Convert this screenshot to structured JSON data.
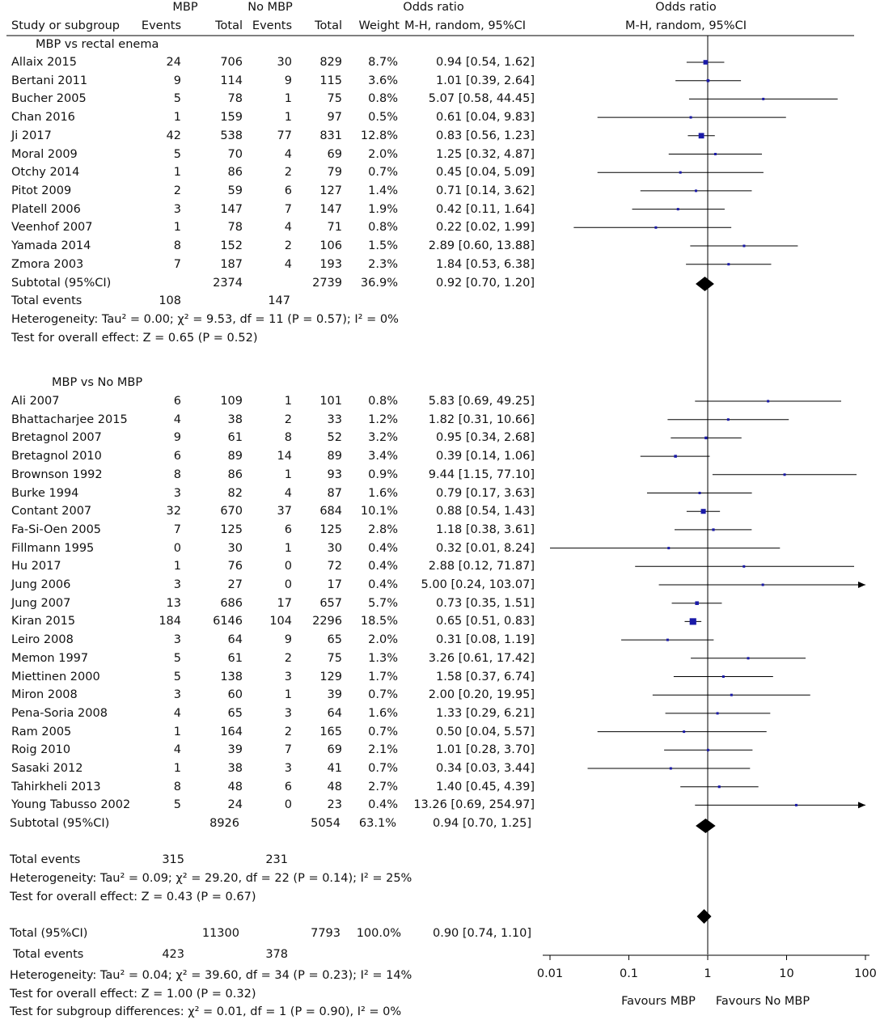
{
  "headers": {
    "group_mbp": "MBP",
    "group_nombp": "No MBP",
    "or_left": "Odds ratio",
    "or_right": "Odds ratio",
    "study": "Study or subgroup",
    "events1": "Events",
    "total1": "Total",
    "events2": "Events",
    "total2": "Total",
    "weight": "Weight",
    "method_left": "M-H, random, 95%CI",
    "method_right": "M-H, random, 95%CI"
  },
  "chart_data": {
    "type": "forest",
    "x_scale": "log",
    "xlim": [
      0.01,
      100
    ],
    "x_ticks": [
      "0.01",
      "0.1",
      "1",
      "10",
      "100"
    ],
    "favours_left": "Favours MBP",
    "favours_right": "Favours No MBP",
    "subgroups": [
      {
        "name": "MBP vs rectal enema",
        "studies": [
          {
            "study": "Allaix 2015",
            "e1": "24",
            "n1": "706",
            "e2": "30",
            "n2": "829",
            "weight": "8.7%",
            "ci": "0.94 [0.54, 1.62]",
            "or": 0.94,
            "lo": 0.54,
            "hi": 1.62
          },
          {
            "study": "Bertani 2011",
            "e1": "9",
            "n1": "114",
            "e2": "9",
            "n2": "115",
            "weight": "3.6%",
            "ci": "1.01 [0.39, 2.64]",
            "or": 1.01,
            "lo": 0.39,
            "hi": 2.64
          },
          {
            "study": "Bucher 2005",
            "e1": "5",
            "n1": "78",
            "e2": "1",
            "n2": "75",
            "weight": "0.8%",
            "ci": "5.07 [0.58, 44.45]",
            "or": 5.07,
            "lo": 0.58,
            "hi": 44.45
          },
          {
            "study": "Chan 2016",
            "e1": "1",
            "n1": "159",
            "e2": "1",
            "n2": "97",
            "weight": "0.5%",
            "ci": "0.61 [0.04, 9.83]",
            "or": 0.61,
            "lo": 0.04,
            "hi": 9.83
          },
          {
            "study": "Ji 2017",
            "e1": "42",
            "n1": "538",
            "e2": "77",
            "n2": "831",
            "weight": "12.8%",
            "ci": "0.83 [0.56, 1.23]",
            "or": 0.83,
            "lo": 0.56,
            "hi": 1.23
          },
          {
            "study": "Moral 2009",
            "e1": "5",
            "n1": "70",
            "e2": "4",
            "n2": "69",
            "weight": "2.0%",
            "ci": "1.25 [0.32, 4.87]",
            "or": 1.25,
            "lo": 0.32,
            "hi": 4.87
          },
          {
            "study": "Otchy 2014",
            "e1": "1",
            "n1": "86",
            "e2": "2",
            "n2": "79",
            "weight": "0.7%",
            "ci": "0.45 [0.04, 5.09]",
            "or": 0.45,
            "lo": 0.04,
            "hi": 5.09
          },
          {
            "study": "Pitot 2009",
            "e1": "2",
            "n1": "59",
            "e2": "6",
            "n2": "127",
            "weight": "1.4%",
            "ci": "0.71 [0.14, 3.62]",
            "or": 0.71,
            "lo": 0.14,
            "hi": 3.62
          },
          {
            "study": "Platell 2006",
            "e1": "3",
            "n1": "147",
            "e2": "7",
            "n2": "147",
            "weight": "1.9%",
            "ci": "0.42 [0.11, 1.64]",
            "or": 0.42,
            "lo": 0.11,
            "hi": 1.64
          },
          {
            "study": "Veenhof 2007",
            "e1": "1",
            "n1": "78",
            "e2": "4",
            "n2": "71",
            "weight": "0.8%",
            "ci": "0.22 [0.02, 1.99]",
            "or": 0.22,
            "lo": 0.02,
            "hi": 1.99
          },
          {
            "study": "Yamada 2014",
            "e1": "8",
            "n1": "152",
            "e2": "2",
            "n2": "106",
            "weight": "1.5%",
            "ci": "2.89 [0.60, 13.88]",
            "or": 2.89,
            "lo": 0.6,
            "hi": 13.88
          },
          {
            "study": "Zmora 2003",
            "e1": "7",
            "n1": "187",
            "e2": "4",
            "n2": "193",
            "weight": "2.3%",
            "ci": "1.84 [0.53, 6.38]",
            "or": 1.84,
            "lo": 0.53,
            "hi": 6.38
          }
        ],
        "subtotal": {
          "label": "Subtotal (95%CI)",
          "n1": "2374",
          "n2": "2739",
          "weight": "36.9%",
          "ci": "0.92 [0.70, 1.20]",
          "or": 0.92,
          "lo": 0.7,
          "hi": 1.2
        },
        "total_events": {
          "label": "Total events",
          "e1": "108",
          "e2": "147"
        },
        "heterogeneity": "Heterogeneity: Tau² = 0.00; χ² = 9.53, df = 11 (P = 0.57); I² = 0%",
        "overall": "Test for overall effect: Z = 0.65 (P = 0.52)"
      },
      {
        "name": "MBP vs No MBP",
        "studies": [
          {
            "study": "Ali 2007",
            "e1": "6",
            "n1": "109",
            "e2": "1",
            "n2": "101",
            "weight": "0.8%",
            "ci": "5.83 [0.69, 49.25]",
            "or": 5.83,
            "lo": 0.69,
            "hi": 49.25
          },
          {
            "study": "Bhattacharjee 2015",
            "e1": "4",
            "n1": "38",
            "e2": "2",
            "n2": "33",
            "weight": "1.2%",
            "ci": "1.82 [0.31, 10.66]",
            "or": 1.82,
            "lo": 0.31,
            "hi": 10.66
          },
          {
            "study": "Bretagnol 2007",
            "e1": "9",
            "n1": "61",
            "e2": "8",
            "n2": "52",
            "weight": "3.2%",
            "ci": "0.95 [0.34, 2.68]",
            "or": 0.95,
            "lo": 0.34,
            "hi": 2.68
          },
          {
            "study": "Bretagnol 2010",
            "e1": "6",
            "n1": "89",
            "e2": "14",
            "n2": "89",
            "weight": "3.4%",
            "ci": "0.39 [0.14, 1.06]",
            "or": 0.39,
            "lo": 0.14,
            "hi": 1.06
          },
          {
            "study": "Brownson 1992",
            "e1": "8",
            "n1": "86",
            "e2": "1",
            "n2": "93",
            "weight": "0.9%",
            "ci": "9.44 [1.15, 77.10]",
            "or": 9.44,
            "lo": 1.15,
            "hi": 77.1
          },
          {
            "study": "Burke 1994",
            "e1": "3",
            "n1": "82",
            "e2": "4",
            "n2": "87",
            "weight": "1.6%",
            "ci": "0.79 [0.17, 3.63]",
            "or": 0.79,
            "lo": 0.17,
            "hi": 3.63
          },
          {
            "study": "Contant 2007",
            "e1": "32",
            "n1": "670",
            "e2": "37",
            "n2": "684",
            "weight": "10.1%",
            "ci": "0.88 [0.54, 1.43]",
            "or": 0.88,
            "lo": 0.54,
            "hi": 1.43
          },
          {
            "study": "Fa-Si-Oen 2005",
            "e1": "7",
            "n1": "125",
            "e2": "6",
            "n2": "125",
            "weight": "2.8%",
            "ci": "1.18 [0.38, 3.61]",
            "or": 1.18,
            "lo": 0.38,
            "hi": 3.61
          },
          {
            "study": "Fillmann 1995",
            "e1": "0",
            "n1": "30",
            "e2": "1",
            "n2": "30",
            "weight": "0.4%",
            "ci": "0.32 [0.01, 8.24]",
            "or": 0.32,
            "lo": 0.01,
            "hi": 8.24
          },
          {
            "study": "Hu 2017",
            "e1": "1",
            "n1": "76",
            "e2": "0",
            "n2": "72",
            "weight": "0.4%",
            "ci": "2.88 [0.12, 71.87]",
            "or": 2.88,
            "lo": 0.12,
            "hi": 71.87
          },
          {
            "study": "Jung 2006",
            "e1": "3",
            "n1": "27",
            "e2": "0",
            "n2": "17",
            "weight": "0.4%",
            "ci": "5.00 [0.24, 103.07]",
            "or": 5.0,
            "lo": 0.24,
            "hi": 103.07
          },
          {
            "study": "Jung 2007",
            "e1": "13",
            "n1": "686",
            "e2": "17",
            "n2": "657",
            "weight": "5.7%",
            "ci": "0.73 [0.35, 1.51]",
            "or": 0.73,
            "lo": 0.35,
            "hi": 1.51
          },
          {
            "study": "Kiran 2015",
            "e1": "184",
            "n1": "6146",
            "e2": "104",
            "n2": "2296",
            "weight": "18.5%",
            "ci": "0.65 [0.51, 0.83]",
            "or": 0.65,
            "lo": 0.51,
            "hi": 0.83
          },
          {
            "study": "Leiro 2008",
            "e1": "3",
            "n1": "64",
            "e2": "9",
            "n2": "65",
            "weight": "2.0%",
            "ci": "0.31 [0.08, 1.19]",
            "or": 0.31,
            "lo": 0.08,
            "hi": 1.19
          },
          {
            "study": "Memon 1997",
            "e1": "5",
            "n1": "61",
            "e2": "2",
            "n2": "75",
            "weight": "1.3%",
            "ci": "3.26 [0.61, 17.42]",
            "or": 3.26,
            "lo": 0.61,
            "hi": 17.42
          },
          {
            "study": "Miettinen 2000",
            "e1": "5",
            "n1": "138",
            "e2": "3",
            "n2": "129",
            "weight": "1.7%",
            "ci": "1.58 [0.37, 6.74]",
            "or": 1.58,
            "lo": 0.37,
            "hi": 6.74
          },
          {
            "study": "Miron 2008",
            "e1": "3",
            "n1": "60",
            "e2": "1",
            "n2": "39",
            "weight": "0.7%",
            "ci": "2.00 [0.20, 19.95]",
            "or": 2.0,
            "lo": 0.2,
            "hi": 19.95
          },
          {
            "study": "Pena-Soria 2008",
            "e1": "4",
            "n1": "65",
            "e2": "3",
            "n2": "64",
            "weight": "1.6%",
            "ci": "1.33 [0.29, 6.21]",
            "or": 1.33,
            "lo": 0.29,
            "hi": 6.21
          },
          {
            "study": "Ram 2005",
            "e1": "1",
            "n1": "164",
            "e2": "2",
            "n2": "165",
            "weight": "0.7%",
            "ci": "0.50 [0.04, 5.57]",
            "or": 0.5,
            "lo": 0.04,
            "hi": 5.57
          },
          {
            "study": "Roig 2010",
            "e1": "4",
            "n1": "39",
            "e2": "7",
            "n2": "69",
            "weight": "2.1%",
            "ci": "1.01 [0.28, 3.70]",
            "or": 1.01,
            "lo": 0.28,
            "hi": 3.7
          },
          {
            "study": "Sasaki 2012",
            "e1": "1",
            "n1": "38",
            "e2": "3",
            "n2": "41",
            "weight": "0.7%",
            "ci": "0.34 [0.03, 3.44]",
            "or": 0.34,
            "lo": 0.03,
            "hi": 3.44
          },
          {
            "study": "Tahirkheli 2013",
            "e1": "8",
            "n1": "48",
            "e2": "6",
            "n2": "48",
            "weight": "2.7%",
            "ci": "1.40 [0.45, 4.39]",
            "or": 1.4,
            "lo": 0.45,
            "hi": 4.39
          },
          {
            "study": "Young Tabusso 2002",
            "e1": "5",
            "n1": "24",
            "e2": "0",
            "n2": "23",
            "weight": "0.4%",
            "ci": "13.26 [0.69, 254.97]",
            "or": 13.26,
            "lo": 0.69,
            "hi": 254.97
          }
        ],
        "subtotal": {
          "label": "Subtotal (95%CI)",
          "n1": "8926",
          "n2": "5054",
          "weight": "63.1%",
          "ci": "0.94 [0.70, 1.25]",
          "or": 0.94,
          "lo": 0.7,
          "hi": 1.25
        },
        "total_events": {
          "label": "Total events",
          "e1": "315",
          "e2": "231"
        },
        "heterogeneity": "Heterogeneity: Tau² = 0.09; χ² = 29.20, df = 22 (P = 0.14); I² = 25%",
        "overall": "Test for overall effect: Z = 0.43 (P = 0.67)"
      }
    ],
    "total": {
      "label": "Total (95%CI)",
      "n1": "11300",
      "n2": "7793",
      "weight": "100.0%",
      "ci": "0.90 [0.74, 1.10]",
      "or": 0.9,
      "lo": 0.74,
      "hi": 1.1
    },
    "total_events": {
      "label": "Total events",
      "e1": "423",
      "e2": "378"
    },
    "heterogeneity": "Heterogeneity: Tau² = 0.04; χ² = 39.60, df = 34 (P = 0.23); I² = 14%",
    "overall": "Test for overall effect: Z = 1.00 (P = 0.32)",
    "subgroup_diff": "Test for subgroup differences: χ² = 0.01, df = 1 (P = 0.90), I² = 0%"
  },
  "colors": {
    "marker": "#1a1aa8",
    "line": "#000000",
    "text": "#111111"
  }
}
